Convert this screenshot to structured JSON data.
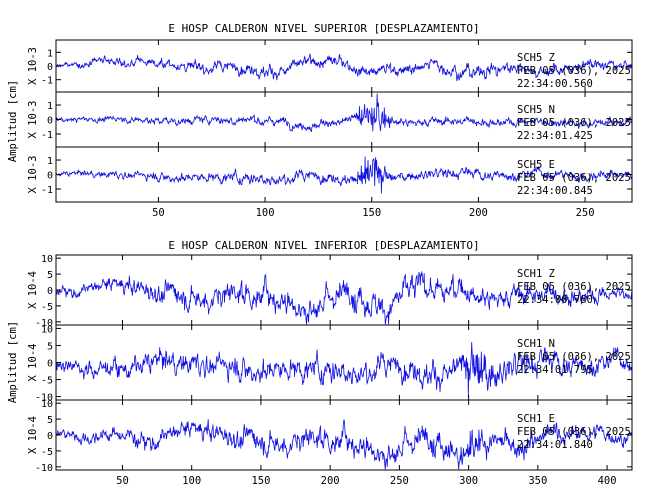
{
  "colors": {
    "trace": "#1010e0",
    "axes": "#000000",
    "background": "#ffffff"
  },
  "chart_data": [
    {
      "type": "line",
      "title": "E HOSP CALDERON NIVEL SUPERIOR [DESPLAZAMIENTO]",
      "ylabel": "Amplitud [cm]",
      "xlim": [
        2,
        272
      ],
      "xticks": [
        50,
        100,
        150,
        200,
        250
      ],
      "x_tick_labels": [
        "50",
        "100",
        "150",
        "200",
        "250"
      ],
      "grid": false,
      "panels": [
        {
          "multiplier_label": "X 10-3",
          "ylim": [
            -1.9,
            1.9
          ],
          "yticks": [
            -1,
            0,
            1
          ],
          "y_tick_labels": [
            "-1",
            "0",
            "1"
          ],
          "station": "SCH5",
          "component": "Z",
          "date": "FEB 05 (036), 2025",
          "time": "22:34:00.560",
          "envelope": [
            [
              2,
              0.15
            ],
            [
              20,
              0.25
            ],
            [
              50,
              0.35
            ],
            [
              100,
              0.45
            ],
            [
              150,
              0.4
            ],
            [
              200,
              0.5
            ],
            [
              250,
              0.4
            ],
            [
              272,
              0.3
            ]
          ],
          "burst": null
        },
        {
          "multiplier_label": "X 10-3",
          "ylim": [
            -1.9,
            1.9
          ],
          "yticks": [
            -1,
            0,
            1
          ],
          "y_tick_labels": [
            "-1",
            "0",
            "1"
          ],
          "station": "SCH5",
          "component": "N",
          "date": "FEB 05 (036), 2025",
          "time": "22:34:01.425",
          "envelope": [
            [
              2,
              0.15
            ],
            [
              50,
              0.25
            ],
            [
              100,
              0.3
            ],
            [
              140,
              0.3
            ],
            [
              200,
              0.3
            ],
            [
              272,
              0.25
            ]
          ],
          "burst": {
            "start": 140,
            "end": 160,
            "amp": 1.6
          }
        },
        {
          "multiplier_label": "X 10-3",
          "ylim": [
            -1.9,
            1.9
          ],
          "yticks": [
            -1,
            0,
            1
          ],
          "y_tick_labels": [
            "-1",
            "0",
            "1"
          ],
          "station": "SCH5",
          "component": "E",
          "date": "FEB 05 (036), 2025",
          "time": "22:34:00.845",
          "envelope": [
            [
              2,
              0.15
            ],
            [
              50,
              0.3
            ],
            [
              100,
              0.4
            ],
            [
              140,
              0.35
            ],
            [
              200,
              0.35
            ],
            [
              272,
              0.3
            ]
          ],
          "burst": {
            "start": 140,
            "end": 160,
            "amp": 1.7
          }
        }
      ]
    },
    {
      "type": "line",
      "title": "E HOSP CALDERON NIVEL INFERIOR [DESPLAZAMIENTO]",
      "ylabel": "Amplitud [cm]",
      "xlim": [
        2,
        418
      ],
      "xticks": [
        50,
        100,
        150,
        200,
        250,
        300,
        350,
        400
      ],
      "x_tick_labels": [
        "50",
        "100",
        "150",
        "200",
        "250",
        "300",
        "350",
        "400"
      ],
      "grid": false,
      "panels": [
        {
          "multiplier_label": "X 10-4",
          "ylim": [
            -11,
            11
          ],
          "yticks": [
            -10,
            -5,
            0,
            5,
            10
          ],
          "y_tick_labels": [
            "-10",
            "-5",
            "0",
            "5",
            "10"
          ],
          "station": "SCH1",
          "component": "Z",
          "date": "FEB 05 (036), 2025",
          "time": "22:34:00.760",
          "envelope": [
            [
              2,
              1.5
            ],
            [
              60,
              3
            ],
            [
              120,
              4
            ],
            [
              200,
              4.5
            ],
            [
              260,
              4.5
            ],
            [
              300,
              3.5
            ],
            [
              380,
              3
            ],
            [
              418,
              2
            ]
          ],
          "burst": null
        },
        {
          "multiplier_label": "X 10-4",
          "ylim": [
            -11,
            11
          ],
          "yticks": [
            -10,
            -5,
            0,
            5,
            10
          ],
          "y_tick_labels": [
            "-10",
            "-5",
            "0",
            "5",
            "10"
          ],
          "station": "SCH1",
          "component": "N",
          "date": "FEB 05 (036), 2025",
          "time": "22:34:01.795",
          "envelope": [
            [
              2,
              2
            ],
            [
              60,
              3
            ],
            [
              150,
              3.5
            ],
            [
              250,
              3.5
            ],
            [
              330,
              4
            ],
            [
              418,
              2.5
            ]
          ],
          "burst": {
            "start": 285,
            "end": 320,
            "amp": 7
          }
        },
        {
          "multiplier_label": "X 10-4",
          "ylim": [
            -11,
            11
          ],
          "yticks": [
            -10,
            -5,
            0,
            5,
            10
          ],
          "y_tick_labels": [
            "-10",
            "-5",
            "0",
            "5",
            "10"
          ],
          "station": "SCH1",
          "component": "E",
          "date": "FEB 05 (036), 2025",
          "time": "22:34:01.840",
          "envelope": [
            [
              2,
              1.5
            ],
            [
              80,
              3
            ],
            [
              200,
              4
            ],
            [
              260,
              4.5
            ],
            [
              300,
              4
            ],
            [
              360,
              3
            ],
            [
              418,
              2
            ]
          ],
          "burst": {
            "start": 285,
            "end": 320,
            "amp": 5
          }
        }
      ]
    }
  ]
}
